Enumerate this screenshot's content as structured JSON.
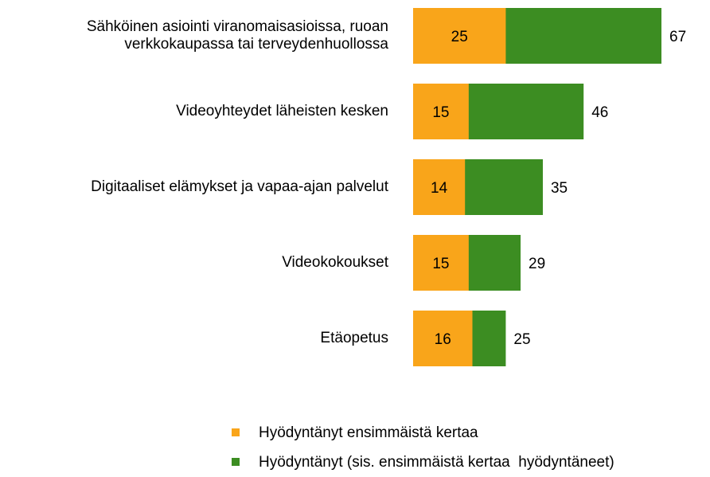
{
  "chart_data": {
    "type": "overlap-bar-horizontal",
    "categories": [
      "Sähköinen asiointi viranomaisasioissa, ruoan\nverkkokaupassa tai terveydenhuollossa",
      "Videoyhteydet läheisten kesken",
      "Digitaaliset elämykset ja vapaa-ajan palvelut",
      "Videokokoukset",
      "Etäopetus"
    ],
    "series": [
      {
        "name": "Hyödyntänyt ensimmäistä kertaa",
        "color": "#f9a51a",
        "values": [
          25,
          15,
          14,
          15,
          16
        ]
      },
      {
        "name": "Hyödyntänyt (sis. ensimmäistä kertaa  hyödyntäneet)",
        "color": "#3c8d22",
        "values": [
          67,
          46,
          35,
          29,
          25
        ]
      }
    ]
  }
}
